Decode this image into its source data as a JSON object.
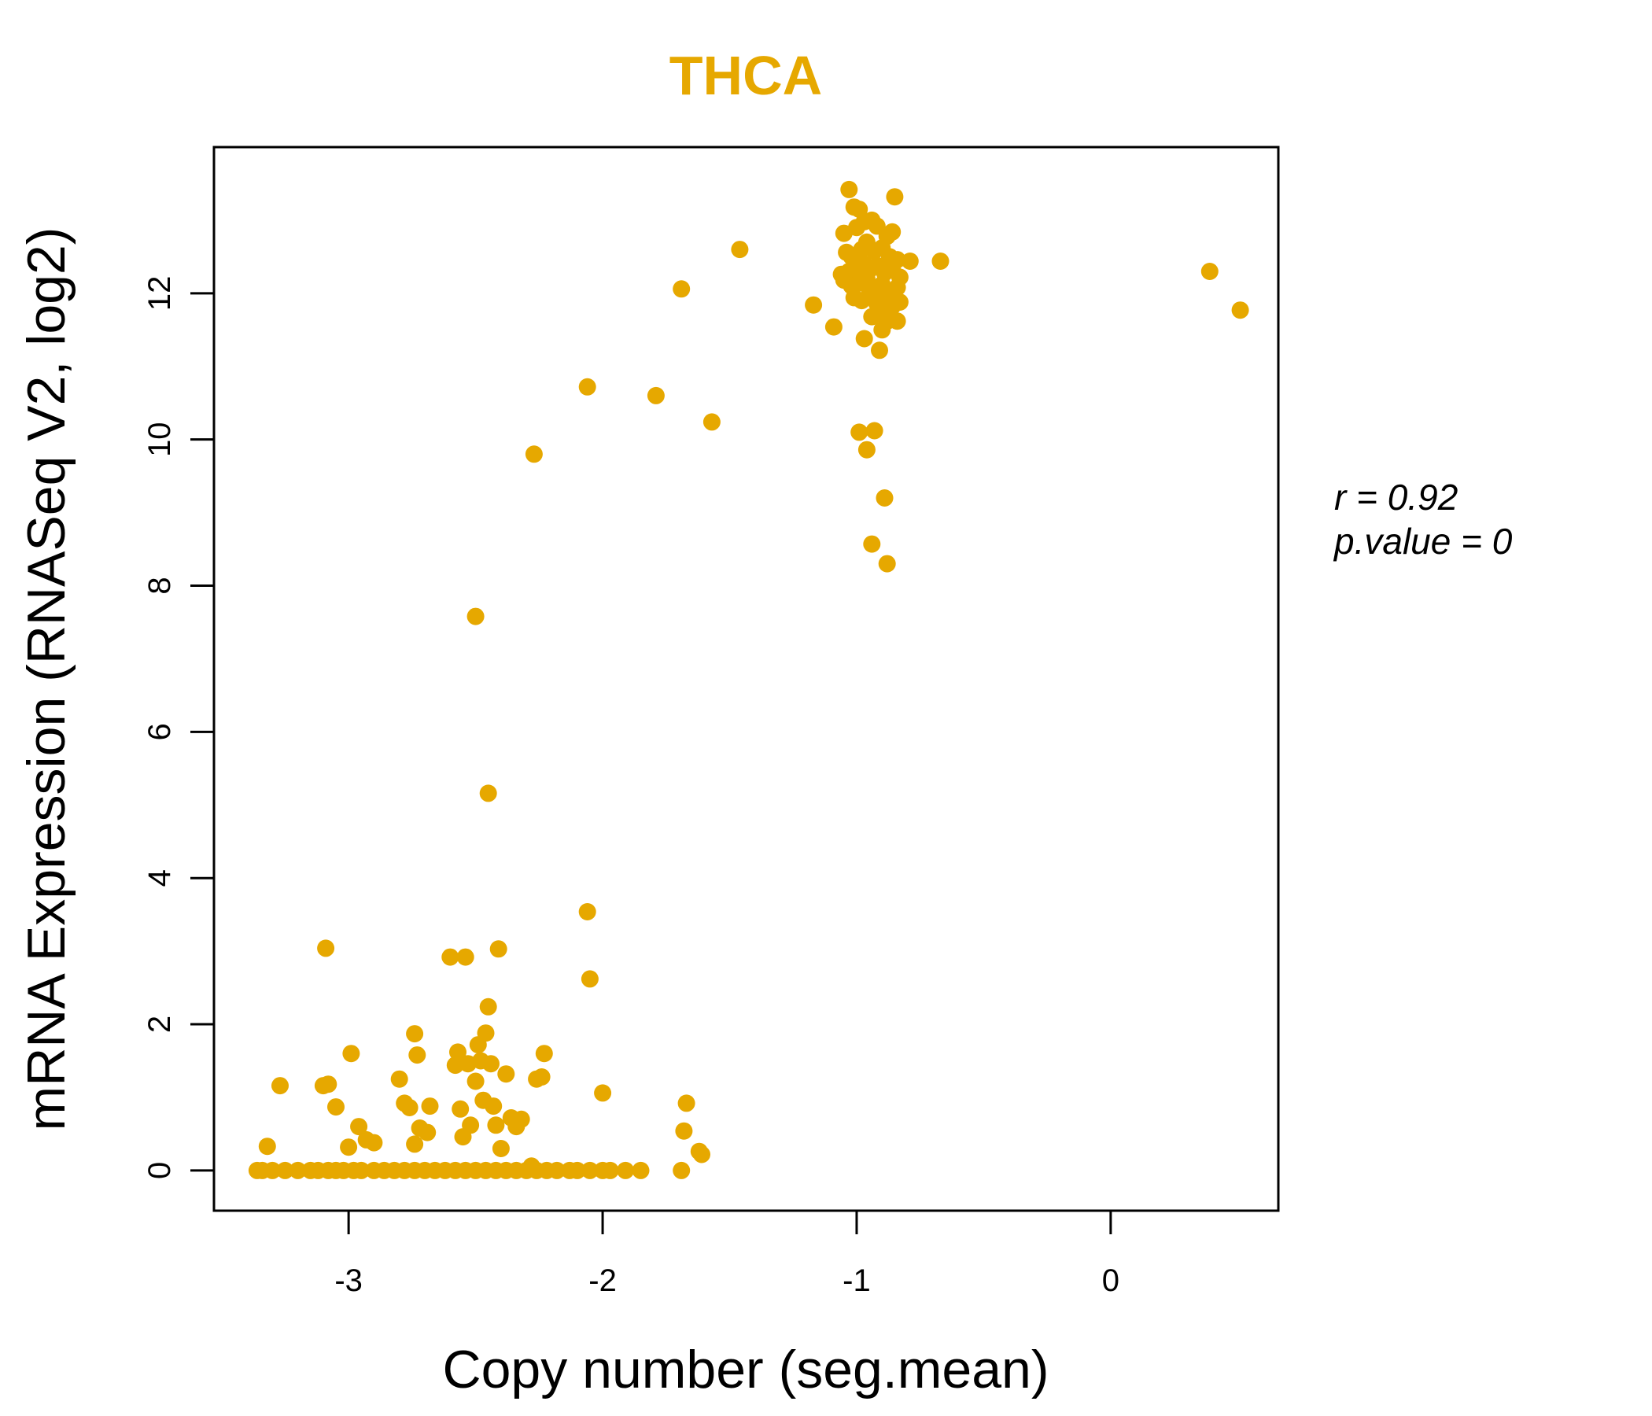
{
  "chart_data": {
    "type": "scatter",
    "title": "THCA",
    "xlabel": "Copy number (seg.mean)",
    "ylabel": "mRNA Expression (RNASeq V2, log2)",
    "xlim": [
      -3.53,
      0.66
    ],
    "ylim": [
      -0.55,
      14.0
    ],
    "x_ticks": [
      -3,
      -2,
      -1,
      0
    ],
    "x_tick_labels": [
      "-3",
      "-2",
      "-1",
      "0"
    ],
    "y_ticks": [
      0,
      2,
      4,
      6,
      8,
      10,
      12
    ],
    "y_tick_labels": [
      "0",
      "2",
      "4",
      "6",
      "8",
      "10",
      "12"
    ],
    "grid": false,
    "point_color": "#E6A800",
    "annotation": {
      "r_label": "r = 0.92",
      "p_label": "p.value = 0"
    },
    "series": [
      {
        "points": [
          [
            -3.36,
            0
          ],
          [
            -3.34,
            0
          ],
          [
            -3.3,
            0
          ],
          [
            -3.25,
            0
          ],
          [
            -3.2,
            0
          ],
          [
            -3.15,
            0
          ],
          [
            -3.12,
            0
          ],
          [
            -3.08,
            0
          ],
          [
            -3.05,
            0
          ],
          [
            -3.02,
            0
          ],
          [
            -2.98,
            0
          ],
          [
            -2.95,
            0
          ],
          [
            -2.9,
            0
          ],
          [
            -2.86,
            0
          ],
          [
            -2.82,
            0
          ],
          [
            -2.78,
            0
          ],
          [
            -2.74,
            0
          ],
          [
            -2.7,
            0
          ],
          [
            -2.66,
            0
          ],
          [
            -2.62,
            0
          ],
          [
            -2.58,
            0
          ],
          [
            -2.54,
            0
          ],
          [
            -2.5,
            0
          ],
          [
            -2.46,
            0
          ],
          [
            -2.42,
            0
          ],
          [
            -2.38,
            0
          ],
          [
            -2.34,
            0
          ],
          [
            -2.3,
            0
          ],
          [
            -2.26,
            0
          ],
          [
            -2.22,
            0
          ],
          [
            -2.18,
            0
          ],
          [
            -2.13,
            0
          ],
          [
            -2.1,
            0
          ],
          [
            -2.05,
            0
          ],
          [
            -2.0,
            0
          ],
          [
            -1.97,
            0
          ],
          [
            -1.91,
            0
          ],
          [
            -1.85,
            0
          ],
          [
            -1.69,
            0
          ],
          [
            -3.32,
            0.33
          ],
          [
            -3.27,
            1.16
          ],
          [
            -3.1,
            1.16
          ],
          [
            -3.08,
            1.18
          ],
          [
            -3.09,
            3.04
          ],
          [
            -3.05,
            0.87
          ],
          [
            -3.0,
            0.32
          ],
          [
            -2.99,
            1.6
          ],
          [
            -2.96,
            0.6
          ],
          [
            -2.93,
            0.42
          ],
          [
            -2.9,
            0.38
          ],
          [
            -2.8,
            1.25
          ],
          [
            -2.78,
            0.92
          ],
          [
            -2.76,
            0.86
          ],
          [
            -2.74,
            1.87
          ],
          [
            -2.73,
            1.58
          ],
          [
            -2.74,
            0.36
          ],
          [
            -2.72,
            0.58
          ],
          [
            -2.69,
            0.52
          ],
          [
            -2.68,
            0.88
          ],
          [
            -2.6,
            2.92
          ],
          [
            -2.58,
            1.44
          ],
          [
            -2.57,
            1.62
          ],
          [
            -2.56,
            0.84
          ],
          [
            -2.55,
            0.46
          ],
          [
            -2.54,
            2.92
          ],
          [
            -2.53,
            1.46
          ],
          [
            -2.52,
            0.62
          ],
          [
            -2.5,
            1.22
          ],
          [
            -2.49,
            1.72
          ],
          [
            -2.48,
            1.5
          ],
          [
            -2.47,
            0.96
          ],
          [
            -2.46,
            1.88
          ],
          [
            -2.45,
            2.24
          ],
          [
            -2.44,
            1.46
          ],
          [
            -2.43,
            0.88
          ],
          [
            -2.41,
            3.03
          ],
          [
            -2.42,
            0.62
          ],
          [
            -2.4,
            0.3
          ],
          [
            -2.38,
            1.32
          ],
          [
            -2.36,
            0.72
          ],
          [
            -2.34,
            0.6
          ],
          [
            -2.32,
            0.7
          ],
          [
            -2.28,
            0.06
          ],
          [
            -2.26,
            1.25
          ],
          [
            -2.24,
            1.28
          ],
          [
            -2.23,
            1.6
          ],
          [
            -2.06,
            3.54
          ],
          [
            -2.05,
            2.62
          ],
          [
            -2.0,
            1.06
          ],
          [
            -1.67,
            0.92
          ],
          [
            -1.68,
            0.54
          ],
          [
            -1.62,
            0.26
          ],
          [
            -1.61,
            0.22
          ],
          [
            -2.5,
            7.58
          ],
          [
            -2.45,
            5.16
          ],
          [
            -2.27,
            9.8
          ],
          [
            -2.06,
            10.72
          ],
          [
            -1.79,
            10.6
          ],
          [
            -1.57,
            10.24
          ],
          [
            -1.69,
            12.06
          ],
          [
            -1.46,
            12.6
          ],
          [
            -1.17,
            11.84
          ],
          [
            -1.09,
            11.54
          ],
          [
            -1.03,
            13.42
          ],
          [
            -1.01,
            13.18
          ],
          [
            -0.99,
            13.15
          ],
          [
            -1.05,
            12.82
          ],
          [
            -1.0,
            12.9
          ],
          [
            -0.97,
            12.98
          ],
          [
            -0.94,
            13.0
          ],
          [
            -0.92,
            12.92
          ],
          [
            -0.88,
            12.78
          ],
          [
            -0.86,
            12.84
          ],
          [
            -0.85,
            13.32
          ],
          [
            -1.04,
            12.56
          ],
          [
            -1.02,
            12.5
          ],
          [
            -0.98,
            12.6
          ],
          [
            -0.96,
            12.7
          ],
          [
            -0.93,
            12.58
          ],
          [
            -0.9,
            12.62
          ],
          [
            -0.87,
            12.5
          ],
          [
            -0.84,
            12.46
          ],
          [
            -0.79,
            12.44
          ],
          [
            -1.06,
            12.26
          ],
          [
            -1.03,
            12.3
          ],
          [
            -1.0,
            12.36
          ],
          [
            -0.97,
            12.4
          ],
          [
            -0.95,
            12.32
          ],
          [
            -0.92,
            12.38
          ],
          [
            -0.89,
            12.28
          ],
          [
            -0.86,
            12.34
          ],
          [
            -0.83,
            12.22
          ],
          [
            -1.05,
            12.18
          ],
          [
            -1.02,
            12.1
          ],
          [
            -0.99,
            12.14
          ],
          [
            -0.96,
            12.2
          ],
          [
            -0.93,
            12.06
          ],
          [
            -0.9,
            12.12
          ],
          [
            -0.87,
            12.02
          ],
          [
            -0.84,
            12.08
          ],
          [
            -1.01,
            11.94
          ],
          [
            -0.98,
            11.9
          ],
          [
            -0.95,
            11.98
          ],
          [
            -0.92,
            11.86
          ],
          [
            -0.89,
            11.92
          ],
          [
            -0.86,
            11.82
          ],
          [
            -0.83,
            11.88
          ],
          [
            -0.94,
            11.68
          ],
          [
            -0.91,
            11.74
          ],
          [
            -0.88,
            11.62
          ],
          [
            -0.84,
            11.62
          ],
          [
            -0.9,
            11.5
          ],
          [
            -0.97,
            11.38
          ],
          [
            -0.91,
            11.22
          ],
          [
            -0.67,
            12.44
          ],
          [
            0.39,
            12.3
          ],
          [
            0.51,
            11.77
          ],
          [
            -0.99,
            10.1
          ],
          [
            -0.93,
            10.12
          ],
          [
            -0.96,
            9.86
          ],
          [
            -0.89,
            9.2
          ],
          [
            -0.94,
            8.57
          ],
          [
            -0.88,
            8.3
          ]
        ]
      }
    ]
  }
}
